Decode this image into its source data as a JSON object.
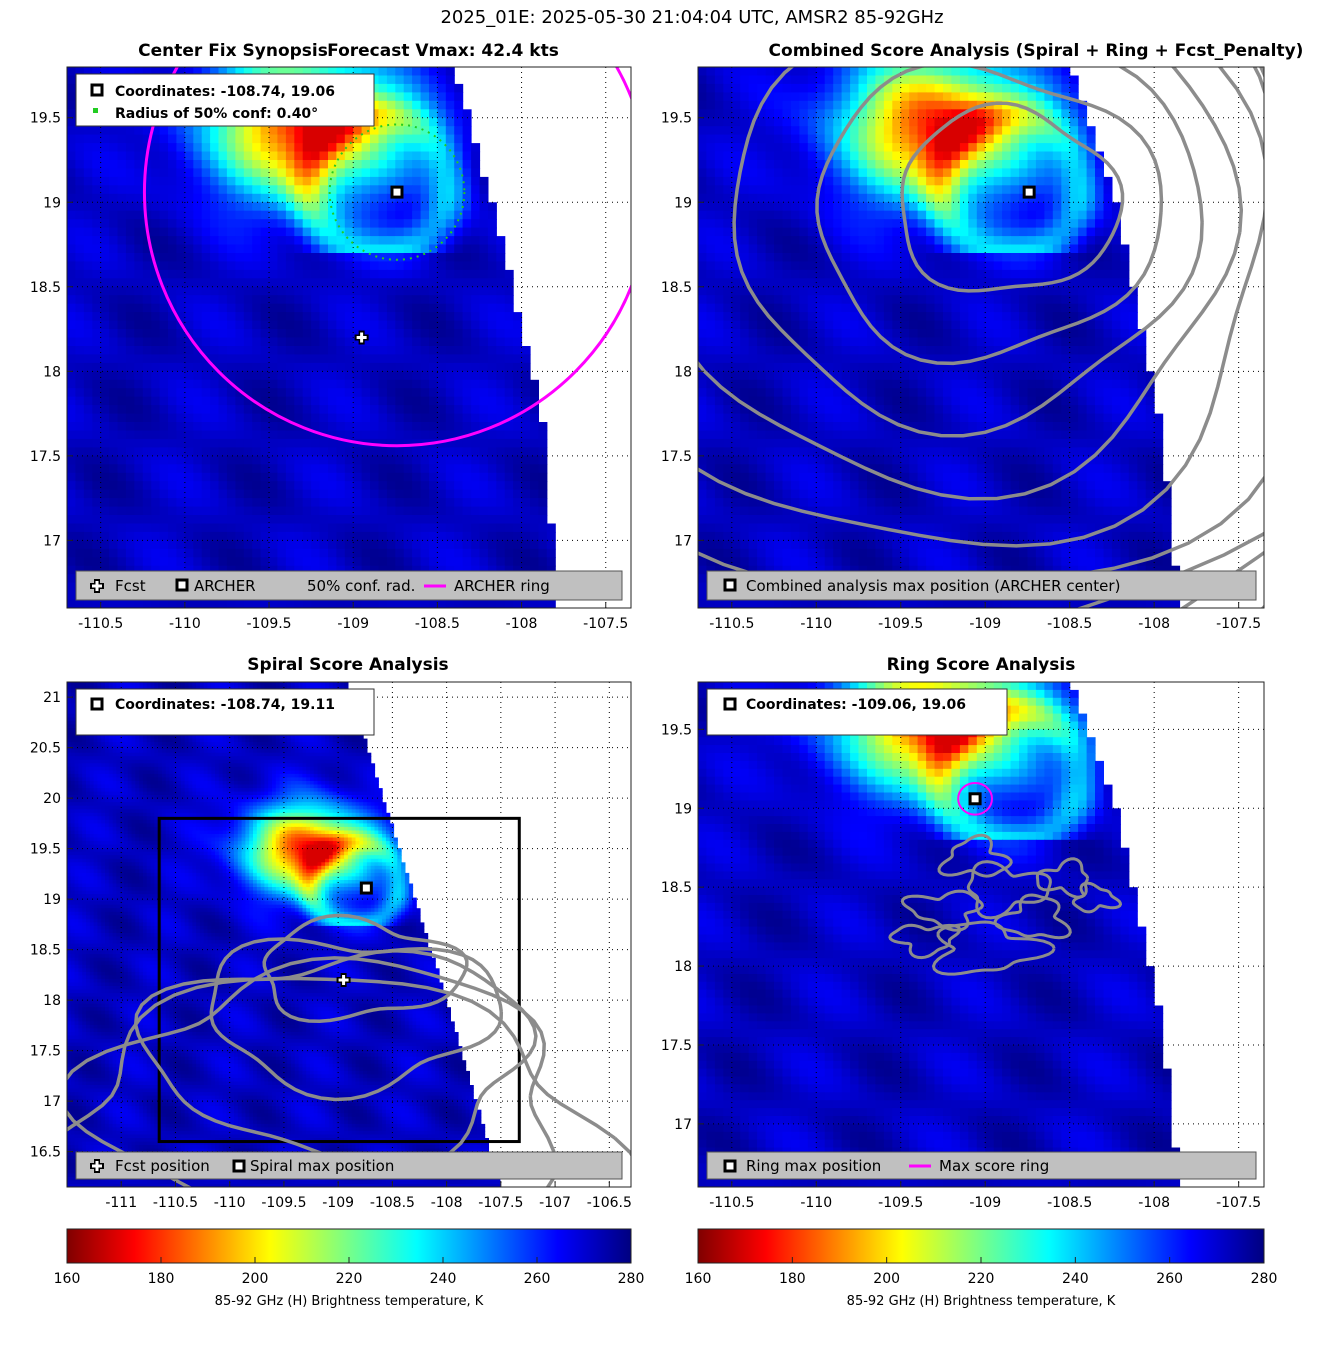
{
  "figure": {
    "suptitle": "2025_01E: 2025-05-30 21:04:04 UTC, AMSR2 85-92GHz"
  },
  "colors": {
    "archer_ring": "#ff00ff",
    "conf_ring": "#22cc22",
    "contour": "#8c8c8c",
    "legend_bg": "#c0c0c0"
  },
  "colorbar": {
    "colormap": "jet_reversed",
    "range": [
      160,
      280
    ],
    "ticks": [
      "160",
      "180",
      "200",
      "220",
      "240",
      "260",
      "280"
    ],
    "label": "85-92 GHz (H) Brightness temperature, K"
  },
  "chart_data": [
    {
      "id": "synopsis",
      "type": "heatmap",
      "title_left": "Center Fix Synopsis",
      "title_right": "Forecast Vmax: 42.4 kts",
      "xlim": [
        -110.7,
        -107.35
      ],
      "ylim": [
        16.6,
        19.8
      ],
      "xticks": [
        "-110.5",
        "-110",
        "-109.5",
        "-109",
        "-108.5",
        "-108",
        "-107.5"
      ],
      "yticks": [
        "17",
        "17.5",
        "18",
        "18.5",
        "19",
        "19.5"
      ],
      "grid": true,
      "colorscale": "brightness_temperature_K",
      "swath_edge": [
        [
          -108.4,
          19.8
        ],
        [
          -108.15,
          18.9
        ],
        [
          -107.85,
          17.6
        ],
        [
          -107.8,
          16.6
        ]
      ],
      "convection_core": {
        "lon": -109.3,
        "lat": 19.45,
        "min_temp": 180
      },
      "fcst": {
        "lon": -108.95,
        "lat": 18.2
      },
      "archer": {
        "lon": -108.74,
        "lat": 19.06
      },
      "archer_ring": {
        "lon": -108.74,
        "lat": 19.06,
        "radius_deg": 1.5
      },
      "conf_ring": {
        "lon": -108.74,
        "lat": 19.06,
        "radius_deg": 0.4
      },
      "annotations": [
        "Coordinates: -108.74, 19.06",
        "Radius of 50% conf: 0.40°"
      ],
      "legend": [
        "Fcst",
        "ARCHER",
        "50% conf. rad.",
        "ARCHER ring"
      ]
    },
    {
      "id": "combined",
      "type": "heatmap",
      "title": "Combined Score Analysis (Spiral + Ring + Fcst_Penalty)",
      "xlim": [
        -110.7,
        -107.35
      ],
      "ylim": [
        16.6,
        19.8
      ],
      "xticks": [
        "-110.5",
        "-110",
        "-109.5",
        "-109",
        "-108.5",
        "-108",
        "-107.5"
      ],
      "yticks": [
        "17",
        "17.5",
        "18",
        "18.5",
        "19",
        "19.5"
      ],
      "grid": true,
      "swath_edge": [
        [
          -108.5,
          19.8
        ],
        [
          -108.2,
          18.9
        ],
        [
          -107.95,
          17.6
        ],
        [
          -107.85,
          16.6
        ]
      ],
      "convection_core": {
        "lon": -109.3,
        "lat": 19.45,
        "min_temp": 180
      },
      "center": {
        "lon": -108.74,
        "lat": 19.06
      },
      "contour_levels": 9,
      "legend": [
        "Combined analysis max position (ARCHER center)"
      ]
    },
    {
      "id": "spiral",
      "type": "heatmap",
      "title": "Spiral Score Analysis",
      "xlim": [
        -111.5,
        -106.3
      ],
      "ylim": [
        16.15,
        21.15
      ],
      "xticks": [
        "-111",
        "-110.5",
        "-110",
        "-109.5",
        "-109",
        "-108.5",
        "-108",
        "-107.5",
        "-107",
        "-106.5"
      ],
      "yticks": [
        "16.5",
        "17",
        "17.5",
        "18",
        "18.5",
        "19",
        "19.5",
        "20",
        "20.5",
        "21"
      ],
      "grid": true,
      "swath_edge": [
        [
          -108.92,
          21.15
        ],
        [
          -108.0,
          18.0
        ],
        [
          -107.5,
          16.15
        ]
      ],
      "convection_core": {
        "lon": -109.3,
        "lat": 19.5,
        "min_temp": 180
      },
      "fcst": {
        "lon": -108.95,
        "lat": 18.2
      },
      "spiral_max": {
        "lon": -108.74,
        "lat": 19.11
      },
      "search_box": {
        "lon_min": -110.65,
        "lon_max": -107.33,
        "lat_min": 16.6,
        "lat_max": 19.8
      },
      "annotations": [
        "Coordinates: -108.74, 19.11"
      ],
      "legend": [
        "Fcst position",
        "Spiral max position"
      ]
    },
    {
      "id": "ring",
      "type": "heatmap",
      "title": "Ring Score Analysis",
      "xlim": [
        -110.7,
        -107.35
      ],
      "ylim": [
        16.6,
        19.8
      ],
      "xticks": [
        "-110.5",
        "-110",
        "-109.5",
        "-109",
        "-108.5",
        "-108",
        "-107.5"
      ],
      "yticks": [
        "17",
        "17.5",
        "18",
        "18.5",
        "19",
        "19.5"
      ],
      "grid": true,
      "swath_edge": [
        [
          -108.5,
          19.8
        ],
        [
          -108.2,
          18.9
        ],
        [
          -107.95,
          17.6
        ],
        [
          -107.85,
          16.6
        ]
      ],
      "convection_core": {
        "lon": -109.3,
        "lat": 19.55,
        "min_temp": 180
      },
      "ring_max": {
        "lon": -109.06,
        "lat": 19.06
      },
      "max_ring_radius_deg": 0.1,
      "annotations": [
        "Coordinates: -109.06, 19.06"
      ],
      "legend": [
        "Ring max position",
        "Max score ring"
      ]
    }
  ]
}
